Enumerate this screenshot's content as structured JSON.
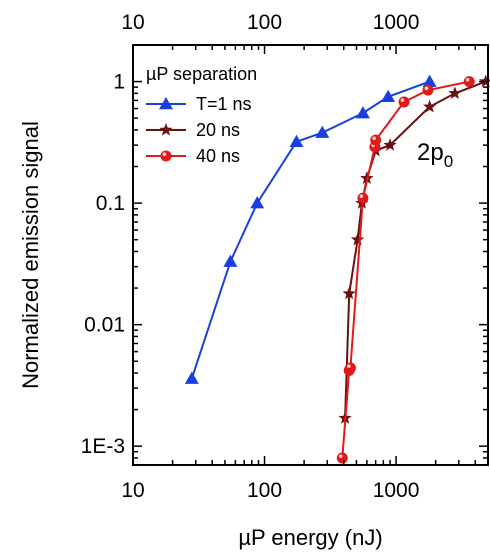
{
  "chart_data": {
    "type": "scatter",
    "xscale": "log",
    "yscale": "log",
    "xlim": [
      10,
      5000
    ],
    "ylim": [
      0.0007,
      2
    ],
    "xlabel": "µP energy (nJ)",
    "ylabel": "Normalized emission signal",
    "x_ticks": [
      10,
      100,
      1000
    ],
    "x_tick_labels": [
      "10",
      "100",
      "1000"
    ],
    "top_x_tick_labels": [
      "10",
      "100",
      "1000"
    ],
    "y_ticks": [
      0.001,
      0.01,
      0.1,
      1
    ],
    "y_tick_labels": [
      "1E-3",
      "0.01",
      "0.1",
      "1"
    ],
    "legend_title": "µP separation",
    "legend_position": "top-left",
    "annotation": {
      "base": "2p",
      "sub": "0"
    },
    "series": [
      {
        "name": "T=1 ns",
        "marker": "triangle",
        "color": "#1a3fe0",
        "x": [
          28,
          55,
          88,
          175,
          275,
          560,
          870,
          1800
        ],
        "y": [
          0.0036,
          0.033,
          0.1,
          0.32,
          0.38,
          0.55,
          0.75,
          1.0
        ]
      },
      {
        "name": "20 ns",
        "marker": "star",
        "color": "#6b0f0f",
        "x": [
          410,
          440,
          510,
          550,
          600,
          700,
          900,
          1800,
          2800,
          4800
        ],
        "y": [
          0.0017,
          0.018,
          0.05,
          0.1,
          0.16,
          0.27,
          0.3,
          0.62,
          0.8,
          1.0
        ]
      },
      {
        "name": "40 ns",
        "marker": "circle",
        "color": "#e01a1a",
        "x": [
          390,
          440,
          450,
          560,
          690,
          700,
          1150,
          1750,
          3600
        ],
        "y": [
          0.0008,
          0.0042,
          0.0044,
          0.11,
          0.29,
          0.33,
          0.68,
          0.85,
          1.0
        ]
      }
    ]
  }
}
